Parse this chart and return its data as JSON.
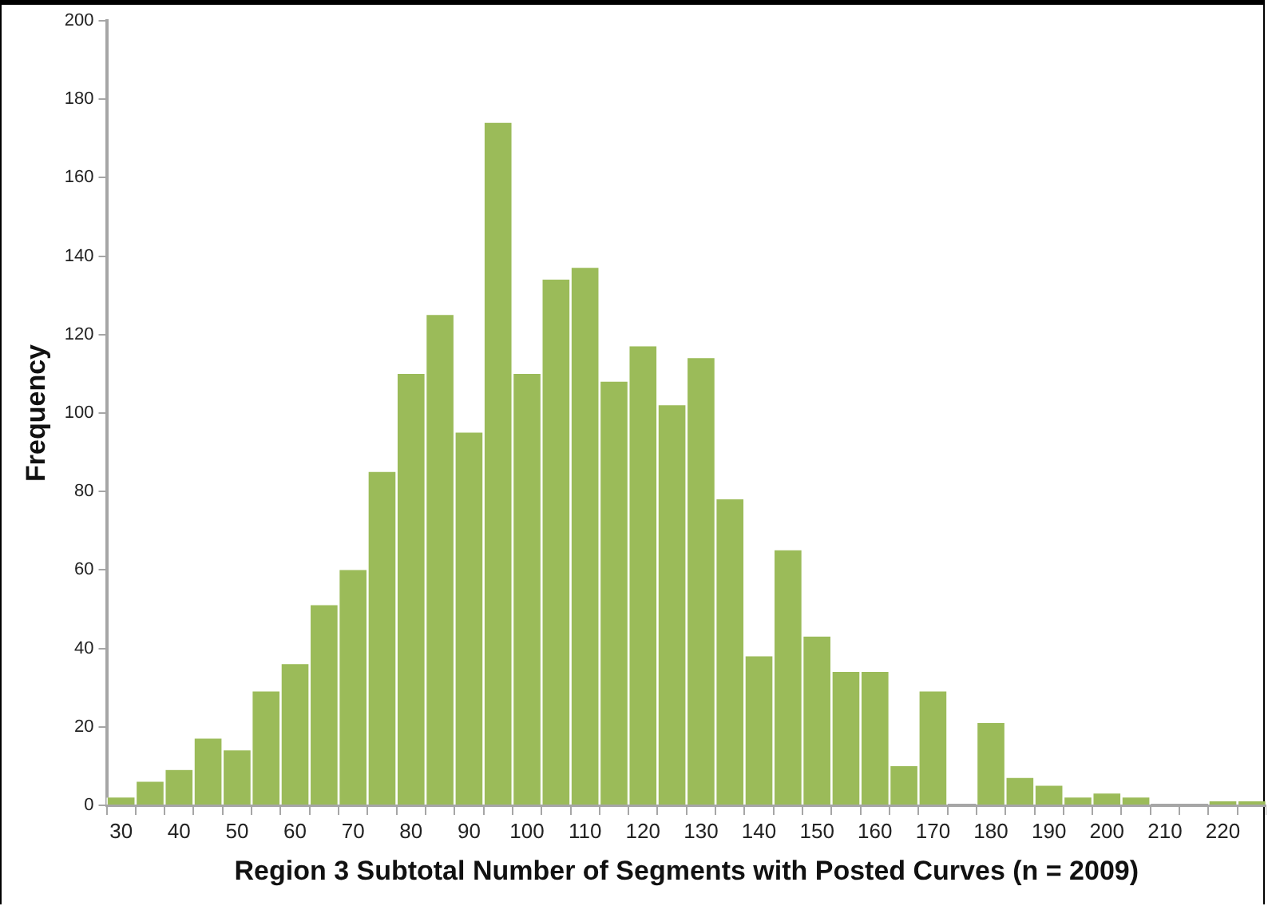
{
  "chart_data": {
    "type": "bar",
    "xlabel": "Region 3 Subtotal Number of Segments with Posted Curves (n = 2009)",
    "ylabel": "Frequency",
    "categories": [
      "30",
      null,
      "40",
      null,
      "50",
      null,
      "60",
      null,
      "70",
      null,
      "80",
      null,
      "90",
      null,
      "100",
      null,
      "110",
      null,
      "120",
      null,
      "130",
      null,
      "140",
      null,
      "150",
      null,
      "160",
      null,
      "170",
      null,
      "180",
      null,
      "190",
      null,
      "200",
      null,
      "210",
      null,
      "220",
      null
    ],
    "values": [
      2,
      6,
      9,
      17,
      14,
      29,
      36,
      51,
      60,
      85,
      110,
      125,
      95,
      174,
      110,
      134,
      137,
      108,
      117,
      102,
      114,
      78,
      38,
      65,
      43,
      34,
      34,
      10,
      29,
      0,
      21,
      7,
      5,
      2,
      3,
      2,
      0,
      0,
      1,
      1
    ],
    "color": "#9bbb59",
    "ylim": [
      0,
      200
    ],
    "yticks": [
      0,
      20,
      40,
      60,
      80,
      100,
      120,
      140,
      160,
      180,
      200
    ],
    "grid": false,
    "legend": false
  }
}
